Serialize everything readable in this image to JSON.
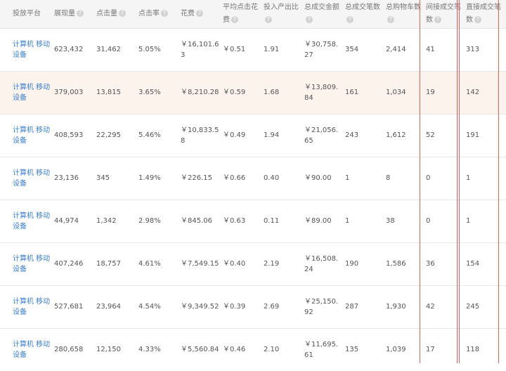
{
  "columns": [
    "投放平台",
    "展现量",
    "点击量",
    "点击率",
    "花费",
    "平均点击花费",
    "投入产出比",
    "总成交金额",
    "总成交笔数",
    "总购物车数",
    "间接成交笔数",
    "直接成交笔数"
  ],
  "help_icon": "?",
  "highlight_color": "#fbf3ec",
  "rows": [
    [
      "计算机 移动设备",
      "623,432",
      "31,462",
      "5.05%",
      "￥16,101.63",
      "￥0.51",
      "1.91",
      "￥30,758.27",
      "354",
      "2,414",
      "41",
      "313"
    ],
    [
      "计算机 移动设备",
      "379,003",
      "13,815",
      "3.65%",
      "￥8,210.28",
      "￥0.59",
      "1.68",
      "￥13,809.84",
      "161",
      "1,034",
      "19",
      "142"
    ],
    [
      "计算机 移动设备",
      "408,593",
      "22,295",
      "5.46%",
      "￥10,833.58",
      "￥0.49",
      "1.94",
      "￥21,056.65",
      "243",
      "1,612",
      "52",
      "191"
    ],
    [
      "计算机 移动设备",
      "23,136",
      "345",
      "1.49%",
      "￥226.15",
      "￥0.66",
      "0.40",
      "￥90.00",
      "1",
      "8",
      "0",
      "1"
    ],
    [
      "计算机 移动设备",
      "44,974",
      "1,342",
      "2.98%",
      "￥845.06",
      "￥0.63",
      "0.11",
      "￥89.00",
      "1",
      "38",
      "0",
      "1"
    ],
    [
      "计算机 移动设备",
      "407,246",
      "18,757",
      "4.61%",
      "￥7,549.15",
      "￥0.40",
      "2.19",
      "￥16,508.24",
      "190",
      "1,586",
      "36",
      "154"
    ],
    [
      "计算机 移动设备",
      "527,681",
      "23,964",
      "4.54%",
      "￥9,349.52",
      "￥0.39",
      "2.69",
      "￥25,150.92",
      "287",
      "1,930",
      "42",
      "245"
    ],
    [
      "计算机 移动设备",
      "280,658",
      "12,150",
      "4.33%",
      "￥5,560.84",
      "￥0.46",
      "2.10",
      "￥11,695.61",
      "135",
      "1,039",
      "17",
      "118"
    ]
  ]
}
